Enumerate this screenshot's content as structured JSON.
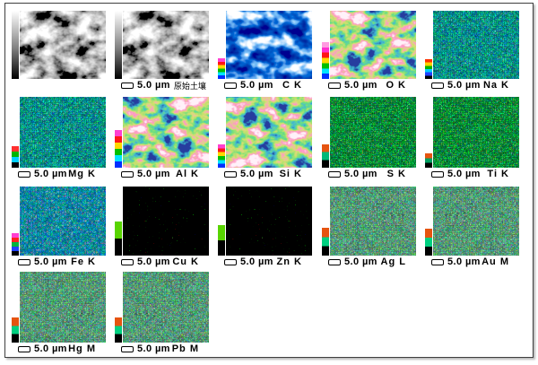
{
  "figure": {
    "description": "SEM image and EDS elemental mapping grid of soil sample",
    "background": "#ffffff",
    "border_color": "#3f3f3f",
    "scale_bar_text": "5.0 µm",
    "panels": [
      {
        "id": "sem-image-1",
        "label": "",
        "label_kind": "",
        "has_scale": false,
        "map": "sem",
        "row": 0,
        "col": 0,
        "cb": {
          "full": true,
          "h": 0,
          "colors": [
            "#ffffff",
            "#000000"
          ]
        }
      },
      {
        "id": "sem-image-2",
        "label": "原始土壤",
        "label_kind": "cjk",
        "has_scale": true,
        "map": "sem",
        "row": 0,
        "col": 1,
        "cb": {
          "full": true,
          "h": 0,
          "colors": [
            "#ffffff",
            "#000000"
          ]
        }
      },
      {
        "id": "map-c-k",
        "label": "C K",
        "label_kind": "",
        "has_scale": true,
        "map": "blue",
        "row": 0,
        "col": 2,
        "cb": {
          "full": false,
          "h": 23,
          "colors": [
            "#ff3fd0",
            "#ff1515",
            "#ffd800",
            "#00c000",
            "#00e4ff",
            "#0030ff"
          ]
        }
      },
      {
        "id": "map-o-k",
        "label": "O K",
        "label_kind": "",
        "has_scale": true,
        "map": "rainbow",
        "row": 0,
        "col": 3,
        "cb": {
          "full": false,
          "h": 41,
          "colors": [
            "#ff9be0",
            "#ff2fd0",
            "#ff1515",
            "#ffd800",
            "#00c000",
            "#00e4ff",
            "#0030ff"
          ]
        }
      },
      {
        "id": "map-na-k",
        "label": "Na K",
        "label_kind": "",
        "has_scale": true,
        "map": "cool",
        "row": 0,
        "col": 4,
        "cb": {
          "full": false,
          "h": 22,
          "colors": [
            "#ff3000",
            "#ffd000",
            "#00b400",
            "#00cfff",
            "#2040ff",
            "#000000"
          ]
        }
      },
      {
        "id": "map-mg-k",
        "label": "Mg K",
        "label_kind": "",
        "has_scale": true,
        "map": "cool",
        "row": 1,
        "col": 0,
        "cb": {
          "full": false,
          "h": 24,
          "colors": [
            "#ff3030",
            "#00b400",
            "#00cfff",
            "#000000"
          ]
        }
      },
      {
        "id": "map-al-k",
        "label": "Al K",
        "label_kind": "",
        "has_scale": true,
        "map": "rainbow",
        "row": 1,
        "col": 1,
        "cb": {
          "full": false,
          "h": 42,
          "colors": [
            "#ff3fd0",
            "#ff1515",
            "#ffd800",
            "#00c000",
            "#00e4ff",
            "#0030ff"
          ]
        }
      },
      {
        "id": "map-si-k",
        "label": "Si K",
        "label_kind": "",
        "has_scale": true,
        "map": "rainbow",
        "row": 1,
        "col": 2,
        "cb": {
          "full": false,
          "h": 26,
          "colors": [
            "#ff3fd0",
            "#ff1515",
            "#ffd800",
            "#00c000",
            "#00e4ff",
            "#0030ff"
          ]
        }
      },
      {
        "id": "map-s-k",
        "label": "S K",
        "label_kind": "",
        "has_scale": true,
        "map": "green",
        "row": 1,
        "col": 3,
        "cb": {
          "full": false,
          "h": 26,
          "colors": [
            "#e65410",
            "#00b878",
            "#000000"
          ]
        }
      },
      {
        "id": "map-ti-k",
        "label": "Ti K",
        "label_kind": "",
        "has_scale": true,
        "map": "green",
        "row": 1,
        "col": 4,
        "cb": {
          "full": false,
          "h": 16,
          "colors": [
            "#e65410",
            "#00a060",
            "#000000"
          ]
        }
      },
      {
        "id": "map-fe-k",
        "label": "Fe K",
        "label_kind": "",
        "has_scale": true,
        "map": "fek",
        "row": 2,
        "col": 0,
        "cb": {
          "full": false,
          "h": 25,
          "colors": [
            "#ff3fd0",
            "#ff2020",
            "#00b440",
            "#2040ff",
            "#000000"
          ]
        }
      },
      {
        "id": "map-cu-k",
        "label": "Cu K",
        "label_kind": "",
        "has_scale": true,
        "map": "sparse",
        "row": 2,
        "col": 1,
        "cb": {
          "full": false,
          "h": 38,
          "colors": [
            "#58d400",
            "#000000"
          ]
        }
      },
      {
        "id": "map-zn-k",
        "label": "Zn K",
        "label_kind": "",
        "has_scale": true,
        "map": "sparse",
        "row": 2,
        "col": 2,
        "cb": {
          "full": false,
          "h": 34,
          "colors": [
            "#58d400",
            "#000000"
          ]
        }
      },
      {
        "id": "map-ag-l",
        "label": "Ag L",
        "label_kind": "",
        "has_scale": true,
        "map": "teal",
        "row": 2,
        "col": 3,
        "cb": {
          "full": false,
          "h": 31,
          "colors": [
            "#e65410",
            "#00d080",
            "#000000"
          ]
        }
      },
      {
        "id": "map-au-m",
        "label": "Au M",
        "label_kind": "",
        "has_scale": true,
        "map": "teal",
        "row": 2,
        "col": 4,
        "cb": {
          "full": false,
          "h": 30,
          "colors": [
            "#e65410",
            "#00d080",
            "#000000"
          ]
        }
      },
      {
        "id": "map-hg-m",
        "label": "Hg M",
        "label_kind": "",
        "has_scale": true,
        "map": "teal",
        "row": 3,
        "col": 0,
        "cb": {
          "full": false,
          "h": 28,
          "colors": [
            "#e65410",
            "#00d080",
            "#000000"
          ]
        }
      },
      {
        "id": "map-pb-m",
        "label": "Pb M",
        "label_kind": "",
        "has_scale": true,
        "map": "teal",
        "row": 3,
        "col": 1,
        "cb": {
          "full": false,
          "h": 28,
          "colors": [
            "#e65410",
            "#00d080",
            "#000000"
          ]
        }
      }
    ]
  }
}
